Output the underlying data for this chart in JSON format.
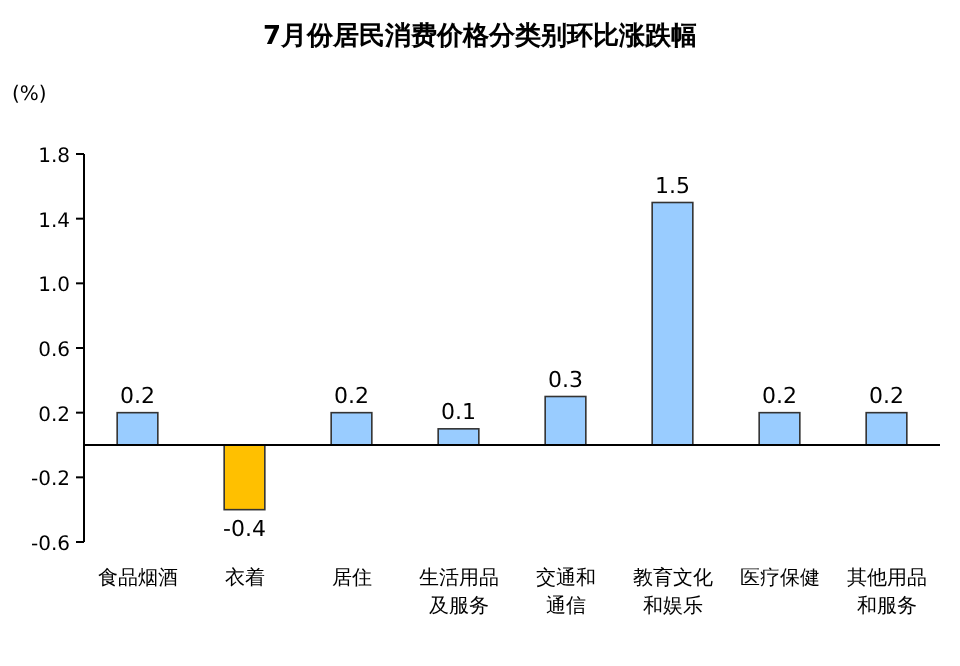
{
  "chart_data": {
    "type": "bar",
    "title": "7月份居民消费价格分类别环比涨跌幅",
    "ylabel": "(%)",
    "categories": [
      "食品烟酒",
      "衣着",
      "居住",
      "生活用品及服务",
      "交通和通信",
      "教育文化和娱乐",
      "医疗保健",
      "其他用品和服务"
    ],
    "values": [
      0.2,
      -0.4,
      0.2,
      0.1,
      0.3,
      1.5,
      0.2,
      0.2
    ],
    "colors": [
      "#99ccff",
      "#ffc000",
      "#99ccff",
      "#99ccff",
      "#99ccff",
      "#99ccff",
      "#99ccff",
      "#99ccff"
    ],
    "ylim": [
      -0.6,
      1.8
    ],
    "yticks": [
      -0.6,
      -0.2,
      0.2,
      0.6,
      {
        "value": 1,
        "label": "1.0"
      },
      1.4,
      1.8
    ],
    "data_labels": true
  }
}
